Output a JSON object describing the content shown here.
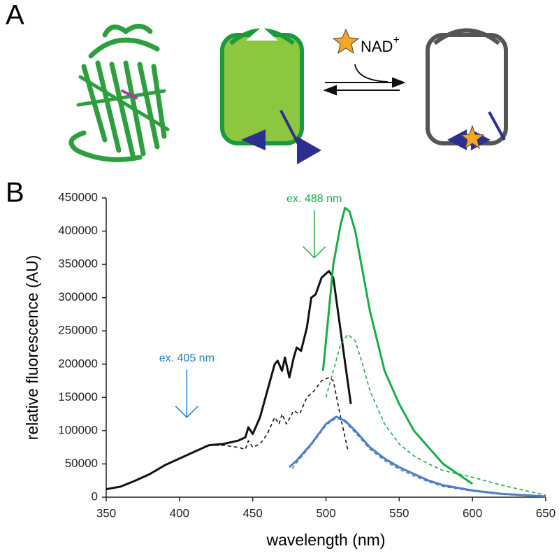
{
  "panels": {
    "a_label": "A",
    "b_label": "B"
  },
  "diagram": {
    "ligand": "NAD",
    "charge": "+"
  },
  "chart_data": {
    "type": "line",
    "x_label": "wavelength (nm)",
    "y_label": "relative fluorescence (AU)",
    "xlim": [
      350,
      650
    ],
    "xticks": [
      350,
      400,
      450,
      500,
      550,
      600,
      650
    ],
    "ylim": [
      0,
      450000
    ],
    "yticks": [
      0,
      50000,
      100000,
      150000,
      200000,
      250000,
      300000,
      350000,
      400000,
      450000
    ],
    "grid": false,
    "series": [
      {
        "color": "#111111",
        "dash": false,
        "x": [
          350,
          360,
          370,
          380,
          390,
          400,
          410,
          420,
          430,
          440,
          445,
          447,
          450,
          455,
          460,
          465,
          467,
          470,
          472,
          475,
          478,
          480,
          483,
          487,
          490,
          493,
          497,
          502,
          505,
          510,
          517
        ],
        "values": [
          12000,
          16000,
          25000,
          35000,
          48000,
          58000,
          68000,
          78000,
          80000,
          85000,
          90000,
          105000,
          95000,
          120000,
          160000,
          200000,
          205000,
          190000,
          210000,
          180000,
          210000,
          225000,
          220000,
          255000,
          300000,
          305000,
          330000,
          340000,
          330000,
          250000,
          140000
        ]
      },
      {
        "color": "#111111",
        "dash": true,
        "x": [
          420,
          430,
          440,
          445,
          447,
          450,
          455,
          460,
          465,
          468,
          470,
          473,
          478,
          482,
          487,
          492,
          497,
          502,
          505,
          510,
          515
        ],
        "values": [
          78000,
          78000,
          75000,
          72000,
          85000,
          75000,
          80000,
          95000,
          120000,
          110000,
          125000,
          110000,
          130000,
          125000,
          150000,
          160000,
          175000,
          180000,
          175000,
          120000,
          70000
        ]
      },
      {
        "color": "#1aaa48",
        "dash": false,
        "x": [
          498,
          502,
          505,
          510,
          513,
          516,
          520,
          525,
          530,
          540,
          550,
          560,
          570,
          580,
          590,
          600
        ],
        "values": [
          190000,
          280000,
          350000,
          410000,
          435000,
          430000,
          400000,
          340000,
          280000,
          190000,
          140000,
          100000,
          75000,
          50000,
          35000,
          20000
        ]
      },
      {
        "color": "#1aaa48",
        "dash": true,
        "x": [
          500,
          505,
          510,
          515,
          520,
          525,
          530,
          540,
          550,
          560,
          570,
          580,
          600,
          620,
          640,
          650
        ],
        "values": [
          150000,
          190000,
          230000,
          245000,
          235000,
          200000,
          160000,
          110000,
          80000,
          62000,
          50000,
          40000,
          30000,
          18000,
          8000,
          3000
        ]
      },
      {
        "color": "#4a7fc1",
        "dash": false,
        "x": [
          475,
          480,
          490,
          500,
          507,
          513,
          520,
          530,
          540,
          550,
          560,
          570,
          580,
          600,
          620,
          650
        ],
        "values": [
          45000,
          55000,
          80000,
          110000,
          121000,
          115000,
          100000,
          75000,
          58000,
          45000,
          35000,
          25000,
          18000,
          10000,
          5000,
          1000
        ]
      },
      {
        "color": "#4a7fc1",
        "dash": true,
        "x": [
          477,
          480,
          490,
          500,
          507,
          513,
          520,
          530,
          540,
          550,
          560,
          570,
          580,
          600,
          620,
          650
        ],
        "values": [
          43000,
          52000,
          78000,
          108000,
          119000,
          113000,
          97000,
          72000,
          55000,
          42000,
          32000,
          23000,
          16000,
          9000,
          4000,
          1000
        ]
      }
    ],
    "annotations": [
      {
        "text": "ex. 405 nm",
        "x": 405,
        "y": 120000,
        "color": "#1f7fc1"
      },
      {
        "text": "ex. 488 nm",
        "x": 492,
        "y": 360000,
        "color": "#1aaa48"
      }
    ]
  }
}
